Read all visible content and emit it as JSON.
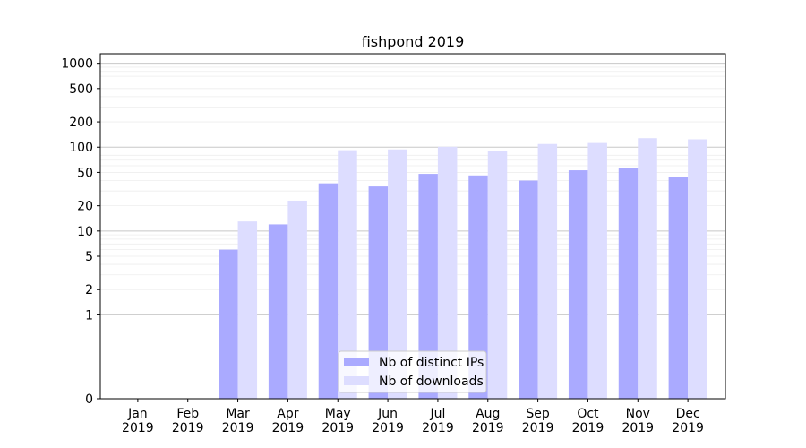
{
  "chart_data": {
    "type": "bar",
    "title": "fishpond 2019",
    "xlabel": "",
    "ylabel": "",
    "y_scale": "symlog",
    "ylim": [
      0,
      1300
    ],
    "y_ticks": [
      0,
      1,
      2,
      5,
      10,
      20,
      50,
      100,
      200,
      500,
      1000
    ],
    "y_tick_labels": [
      "0",
      "1",
      "2",
      "5",
      "10",
      "20",
      "50",
      "100",
      "200",
      "500",
      "1000"
    ],
    "grid": true,
    "legend_position": "bottom-center",
    "categories": [
      [
        "Jan",
        "2019"
      ],
      [
        "Feb",
        "2019"
      ],
      [
        "Mar",
        "2019"
      ],
      [
        "Apr",
        "2019"
      ],
      [
        "May",
        "2019"
      ],
      [
        "Jun",
        "2019"
      ],
      [
        "Jul",
        "2019"
      ],
      [
        "Aug",
        "2019"
      ],
      [
        "Sep",
        "2019"
      ],
      [
        "Oct",
        "2019"
      ],
      [
        "Nov",
        "2019"
      ],
      [
        "Dec",
        "2019"
      ]
    ],
    "series": [
      {
        "name": "Nb of distinct IPs",
        "color": "#aaaaff",
        "values": [
          0,
          0,
          6,
          12,
          37,
          34,
          48,
          46,
          40,
          53,
          57,
          44
        ]
      },
      {
        "name": "Nb of downloads",
        "color": "#ddddff",
        "values": [
          0,
          0,
          13,
          23,
          92,
          94,
          101,
          90,
          109,
          112,
          128,
          124
        ]
      }
    ]
  }
}
